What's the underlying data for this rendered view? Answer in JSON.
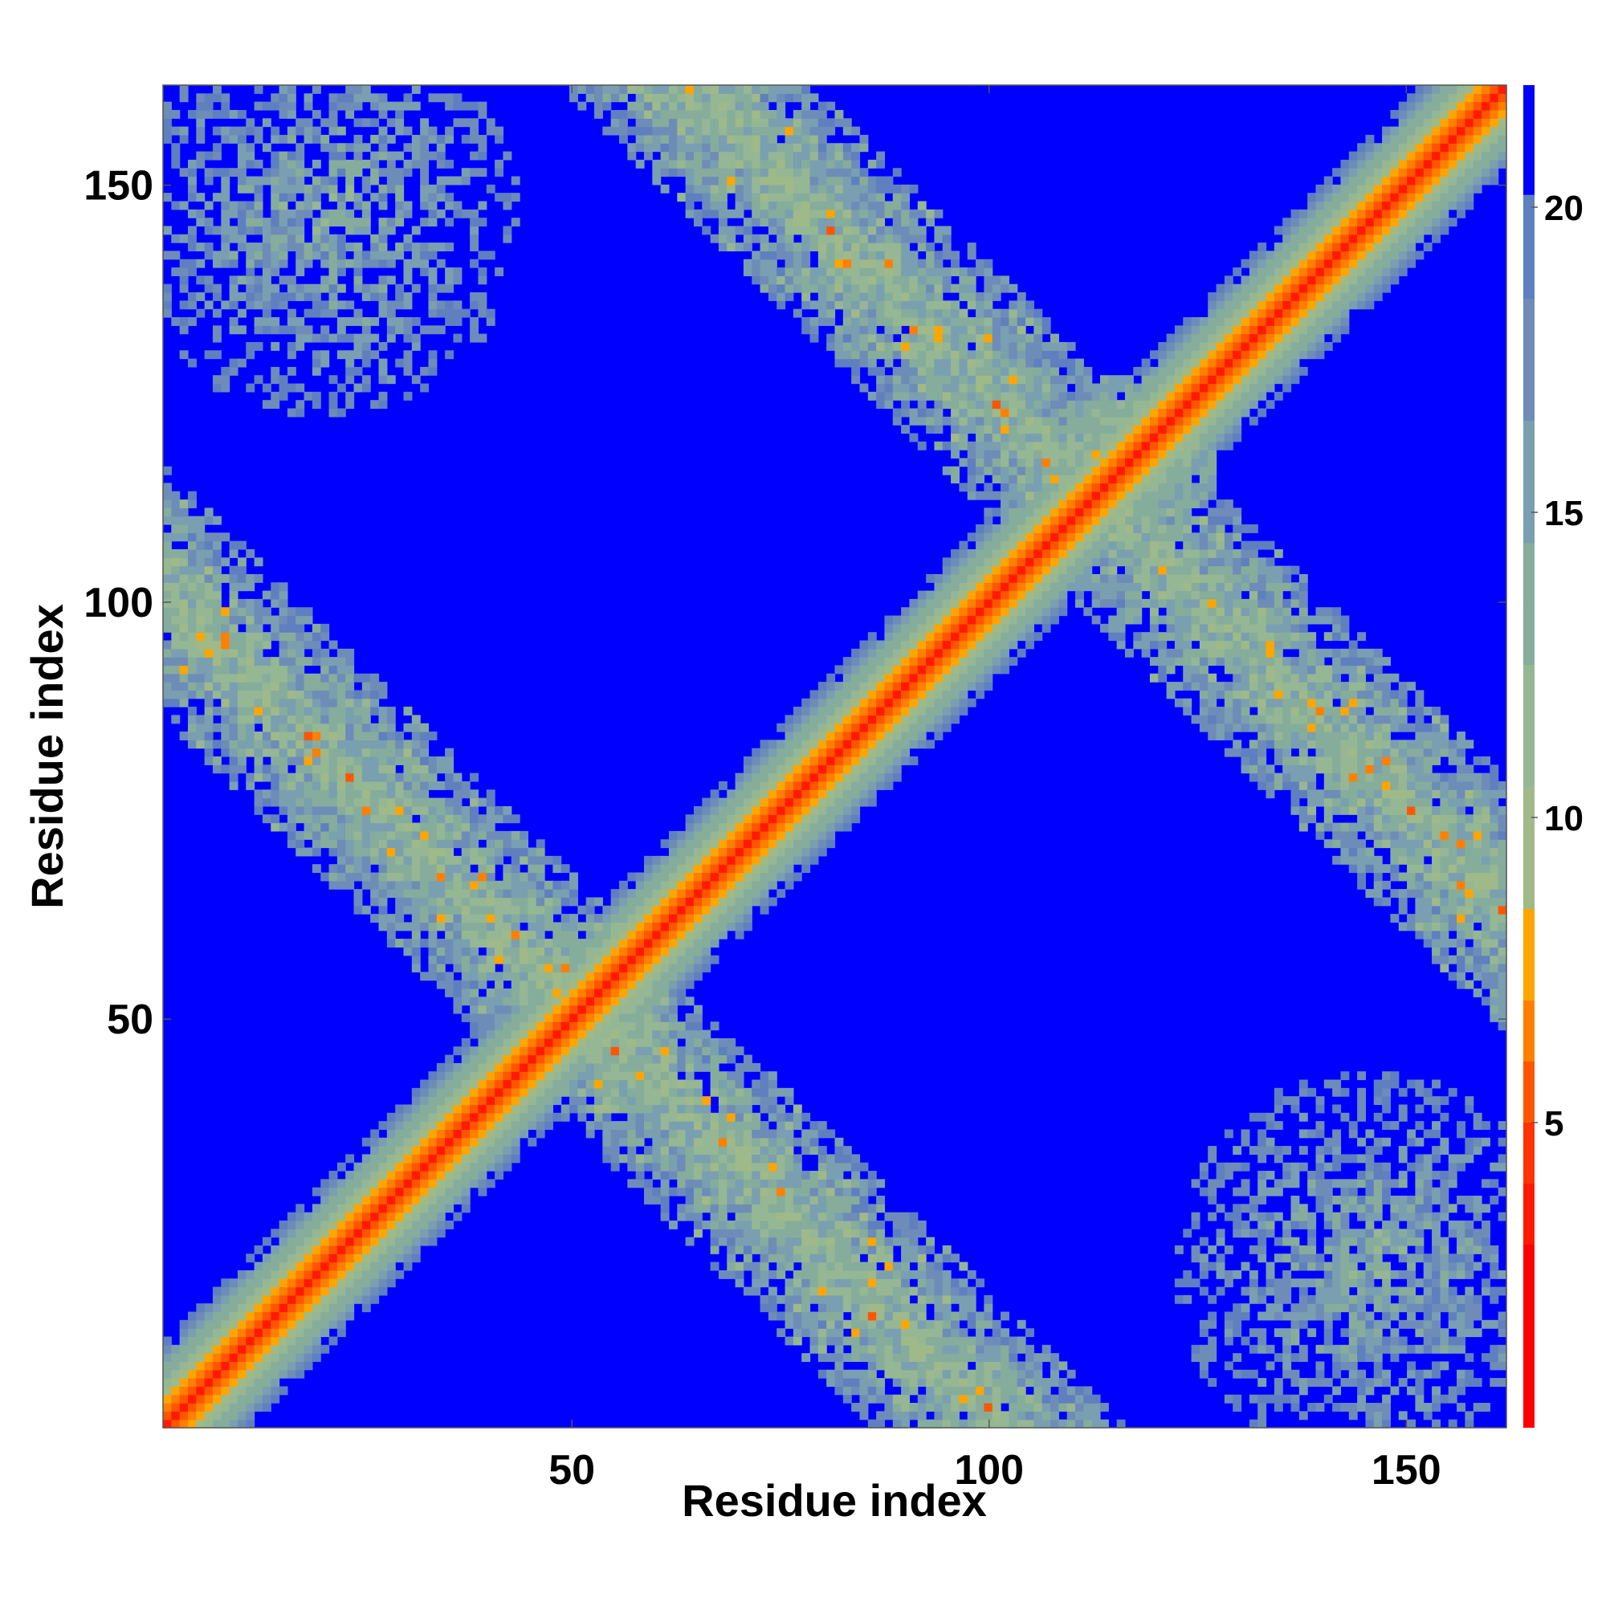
{
  "chart_data": {
    "type": "heatmap",
    "title": "",
    "xlabel": "Residue index",
    "ylabel": "Residue index",
    "xlim": [
      1,
      162
    ],
    "ylim": [
      1,
      162
    ],
    "n": 162,
    "x_ticks": [
      50,
      100,
      150
    ],
    "y_ticks": [
      50,
      100,
      150
    ],
    "x_tick_labels": [
      "50",
      "100",
      "150"
    ],
    "y_tick_labels": [
      "50",
      "100",
      "150"
    ],
    "colorbar": {
      "range": [
        0,
        22
      ],
      "ticks": [
        5,
        10,
        15,
        20
      ],
      "tick_labels": [
        "5",
        "10",
        "15",
        "20"
      ],
      "position": "right"
    },
    "grid": false,
    "legend": "none",
    "colors": {
      "low": "#ff0000",
      "orange": "#ff7f00",
      "amber": "#ffa500",
      "sage": "#8fb08a",
      "mid": "#95b794",
      "slate": "#6e8cb8",
      "steel": "#5f7fbf",
      "high": "#0000ff"
    },
    "structure": {
      "main_diagonal": "low distance along residue i = j",
      "anti_diagonal_contacts": "moderate distance band from (1,100) to (95,1) and from (62,162) to (162,62)",
      "corner_contacts": "moderate distance blobs near (1-40, 130-162) and (130-162, 1-40)",
      "crossing_points": "near residues 52 and 118 on the diagonal"
    }
  }
}
